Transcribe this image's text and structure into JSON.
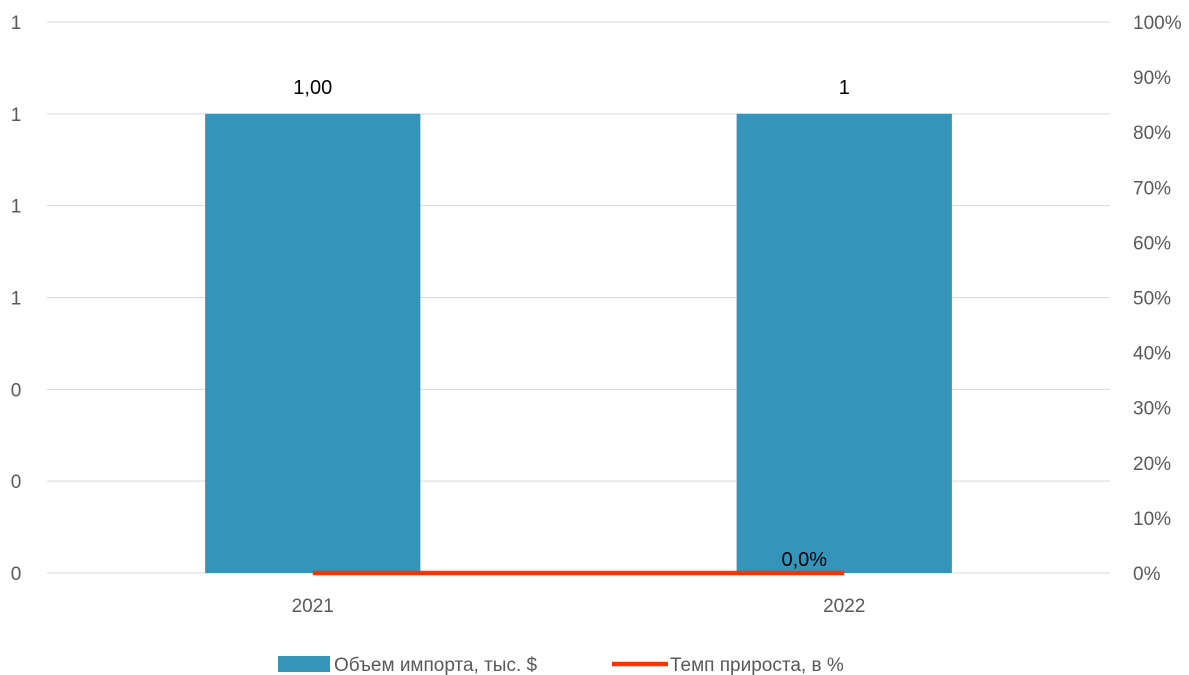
{
  "chart_data": {
    "type": "bar",
    "categories": [
      "2021",
      "2022"
    ],
    "series": [
      {
        "name": "Объем импорта, тыс. $",
        "type": "bar",
        "axis": "left",
        "values": [
          1.0,
          1.0
        ],
        "data_labels": [
          "1,00",
          "1"
        ],
        "color": "#3494BA"
      },
      {
        "name": "Темп прироста, в %",
        "type": "line",
        "axis": "right",
        "values": [
          0.0,
          0.0
        ],
        "data_labels": [
          "",
          "0,0%"
        ],
        "color": "#FF3300"
      }
    ],
    "left_axis": {
      "ylim": [
        0,
        1.2
      ],
      "tick_labels": [
        "0",
        "0",
        "0",
        "1",
        "1",
        "1",
        "1"
      ]
    },
    "right_axis": {
      "ylim": [
        0,
        1
      ],
      "tick_labels": [
        "0%",
        "10%",
        "20%",
        "30%",
        "40%",
        "50%",
        "60%",
        "70%",
        "80%",
        "90%",
        "100%"
      ]
    },
    "grid": true,
    "legend_position": "bottom"
  }
}
